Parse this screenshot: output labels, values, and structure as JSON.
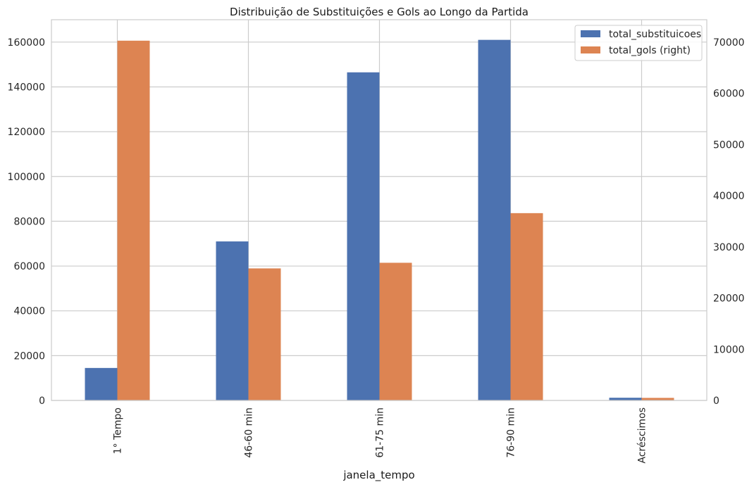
{
  "chart_data": {
    "type": "bar",
    "title": "Distribuição de Substituições e Gols ao Longo da Partida",
    "xlabel": "janela_tempo",
    "ylabel": "",
    "categories": [
      "1° Tempo",
      "46-60 min",
      "61-75 min",
      "76-90 min",
      "Acréscimos"
    ],
    "series": [
      {
        "name": "total_substituicoes",
        "axis": "left",
        "color": "#4c72b0",
        "values": [
          14500,
          71000,
          146500,
          161000,
          1200
        ]
      },
      {
        "name": "total_gols (right)",
        "axis": "right",
        "color": "#dd8452",
        "values": [
          70300,
          25800,
          26900,
          36600,
          500
        ]
      }
    ],
    "ylim": [
      0,
      170000
    ],
    "yticks": [
      0,
      20000,
      40000,
      60000,
      80000,
      100000,
      120000,
      140000,
      160000
    ],
    "ylim_right": [
      0,
      74400
    ],
    "yticks_right": [
      0,
      10000,
      20000,
      30000,
      40000,
      50000,
      60000,
      70000
    ],
    "grid": true,
    "legend_position": "top-right"
  }
}
